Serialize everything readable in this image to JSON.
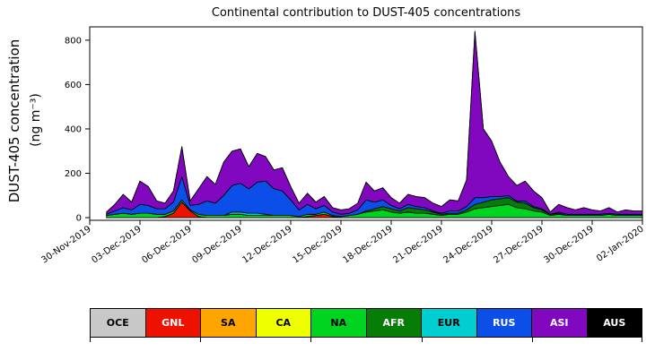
{
  "ylabel_line1": "DUST-405 concentration",
  "ylabel_line2": "(ng m⁻³)",
  "chart_data": {
    "type": "area",
    "stacked": true,
    "title": "Continental contribution to DUST-405 concentrations",
    "xlabel": "",
    "ylabel": "DUST-405 concentration (ng m⁻³)",
    "xlim": [
      0,
      33
    ],
    "ylim": [
      -12,
      860
    ],
    "grid": false,
    "legend_position": "bottom",
    "x_unit": "days since 30-Nov-2019",
    "x_tick_positions": [
      0,
      3,
      6,
      9,
      12,
      15,
      18,
      21,
      24,
      27,
      30,
      33
    ],
    "x_tick_labels": [
      "30-Nov-2019",
      "03-Dec-2019",
      "06-Dec-2019",
      "09-Dec-2019",
      "12-Dec-2019",
      "15-Dec-2019",
      "18-Dec-2019",
      "21-Dec-2019",
      "24-Dec-2019",
      "27-Dec-2019",
      "30-Dec-2019",
      "02-Jan-2020"
    ],
    "y_ticks": [
      0,
      200,
      400,
      600,
      800
    ],
    "x": [
      1,
      1.5,
      2,
      2.5,
      3,
      3.5,
      4,
      4.5,
      5,
      5.5,
      6,
      6.5,
      7,
      7.5,
      8,
      8.5,
      9,
      9.5,
      10,
      10.5,
      11,
      11.5,
      12,
      12.5,
      13,
      13.5,
      14,
      14.5,
      15,
      15.5,
      16,
      16.5,
      17,
      17.5,
      18,
      18.5,
      19,
      19.5,
      20,
      20.5,
      21,
      21.5,
      22,
      22.5,
      23,
      23.5,
      24,
      24.5,
      25,
      25.5,
      26,
      26.5,
      27,
      27.5,
      28,
      28.5,
      29,
      29.5,
      30,
      30.5,
      31,
      31.5,
      32,
      32.5,
      33
    ],
    "series": [
      {
        "name": "OCE",
        "color": "#c8c8c8",
        "values": [
          0,
          0,
          0,
          0,
          0,
          0,
          0,
          0,
          0,
          0,
          0,
          0,
          0,
          0,
          0,
          0,
          0,
          0,
          0,
          0,
          0,
          0,
          0,
          0,
          0,
          0,
          0,
          0,
          0,
          0,
          0,
          0,
          0,
          0,
          0,
          0,
          0,
          0,
          0,
          0,
          0,
          0,
          0,
          0,
          0,
          0,
          0,
          0,
          0,
          0,
          0,
          0,
          0,
          0,
          0,
          0,
          0,
          0,
          0,
          0,
          0,
          0,
          0,
          0,
          0
        ]
      },
      {
        "name": "GNL",
        "color": "#ee1100",
        "values": [
          0,
          0,
          0,
          0,
          0,
          0,
          0,
          5,
          20,
          70,
          30,
          5,
          0,
          0,
          0,
          0,
          0,
          0,
          0,
          0,
          0,
          0,
          0,
          0,
          5,
          10,
          15,
          5,
          0,
          0,
          0,
          0,
          0,
          0,
          0,
          0,
          0,
          0,
          0,
          0,
          0,
          0,
          0,
          0,
          0,
          0,
          0,
          0,
          0,
          0,
          0,
          0,
          0,
          0,
          0,
          0,
          0,
          0,
          0,
          0,
          0,
          0,
          0,
          0,
          0
        ]
      },
      {
        "name": "SA",
        "color": "#ffa500",
        "values": [
          0,
          0,
          0,
          0,
          0,
          0,
          0,
          0,
          0,
          0,
          0,
          0,
          0,
          0,
          0,
          0,
          0,
          0,
          0,
          0,
          0,
          0,
          0,
          0,
          0,
          0,
          0,
          0,
          0,
          0,
          0,
          0,
          0,
          0,
          0,
          0,
          0,
          0,
          0,
          0,
          0,
          0,
          0,
          0,
          0,
          0,
          0,
          0,
          0,
          0,
          0,
          0,
          0,
          0,
          0,
          0,
          0,
          0,
          0,
          0,
          0,
          0,
          0,
          0,
          0
        ]
      },
      {
        "name": "CA",
        "color": "#eeff00",
        "values": [
          0,
          0,
          0,
          0,
          0,
          0,
          0,
          0,
          0,
          0,
          0,
          0,
          0,
          0,
          0,
          0,
          0,
          0,
          0,
          0,
          0,
          0,
          0,
          0,
          0,
          0,
          0,
          0,
          0,
          0,
          0,
          0,
          0,
          0,
          0,
          0,
          0,
          0,
          0,
          0,
          0,
          0,
          0,
          0,
          0,
          0,
          0,
          0,
          0,
          0,
          0,
          0,
          0,
          0,
          0,
          0,
          0,
          0,
          0,
          0,
          0,
          0,
          0,
          0,
          0
        ]
      },
      {
        "name": "NA",
        "color": "#00d420",
        "values": [
          10,
          15,
          20,
          15,
          20,
          20,
          15,
          10,
          10,
          10,
          5,
          10,
          10,
          10,
          10,
          15,
          15,
          10,
          10,
          10,
          10,
          10,
          10,
          5,
          10,
          5,
          10,
          5,
          5,
          10,
          15,
          25,
          30,
          35,
          25,
          20,
          25,
          20,
          20,
          15,
          10,
          15,
          15,
          25,
          40,
          45,
          50,
          55,
          60,
          45,
          40,
          30,
          25,
          10,
          15,
          10,
          10,
          10,
          10,
          10,
          15,
          10,
          10,
          10,
          10
        ]
      },
      {
        "name": "AFR",
        "color": "#067d06",
        "values": [
          0,
          0,
          0,
          0,
          0,
          0,
          0,
          0,
          0,
          0,
          0,
          0,
          0,
          0,
          0,
          0,
          0,
          0,
          0,
          0,
          0,
          0,
          0,
          0,
          0,
          0,
          0,
          0,
          0,
          0,
          0,
          5,
          10,
          15,
          15,
          10,
          20,
          20,
          15,
          10,
          5,
          5,
          5,
          10,
          20,
          25,
          30,
          30,
          30,
          25,
          25,
          15,
          10,
          5,
          5,
          0,
          0,
          0,
          0,
          0,
          0,
          0,
          0,
          0,
          0
        ]
      },
      {
        "name": "EUR",
        "color": "#00ced1",
        "values": [
          0,
          0,
          0,
          0,
          0,
          0,
          0,
          0,
          0,
          0,
          0,
          0,
          0,
          0,
          0,
          10,
          10,
          10,
          10,
          5,
          0,
          0,
          0,
          0,
          0,
          0,
          0,
          0,
          0,
          0,
          0,
          0,
          0,
          0,
          0,
          0,
          0,
          0,
          0,
          0,
          0,
          0,
          0,
          0,
          0,
          0,
          0,
          0,
          0,
          0,
          0,
          0,
          0,
          0,
          0,
          0,
          0,
          0,
          0,
          0,
          0,
          0,
          0,
          0,
          0
        ]
      },
      {
        "name": "RUS",
        "color": "#0b4fe8",
        "values": [
          5,
          15,
          25,
          20,
          40,
          35,
          25,
          25,
          40,
          105,
          20,
          45,
          65,
          55,
          90,
          120,
          130,
          110,
          140,
          150,
          120,
          110,
          70,
          30,
          45,
          25,
          30,
          15,
          10,
          10,
          20,
          50,
          30,
          30,
          15,
          10,
          15,
          10,
          10,
          5,
          5,
          10,
          10,
          15,
          30,
          20,
          15,
          10,
          10,
          5,
          10,
          5,
          5,
          0,
          5,
          5,
          5,
          5,
          5,
          5,
          5,
          5,
          5,
          5,
          5
        ]
      },
      {
        "name": "ASI",
        "color": "#8208c0",
        "values": [
          10,
          30,
          60,
          35,
          105,
          85,
          35,
          25,
          50,
          135,
          20,
          70,
          110,
          85,
          150,
          155,
          155,
          100,
          130,
          110,
          85,
          105,
          60,
          30,
          50,
          30,
          40,
          20,
          20,
          20,
          30,
          80,
          50,
          55,
          35,
          25,
          45,
          45,
          45,
          35,
          30,
          50,
          45,
          120,
          750,
          310,
          250,
          155,
          85,
          70,
          90,
          70,
          50,
          10,
          35,
          30,
          20,
          30,
          20,
          15,
          25,
          10,
          20,
          15,
          15
        ]
      },
      {
        "name": "AUS",
        "color": "#000000",
        "values": [
          0,
          0,
          0,
          0,
          0,
          0,
          0,
          0,
          0,
          0,
          0,
          0,
          0,
          0,
          0,
          0,
          0,
          0,
          0,
          0,
          0,
          0,
          0,
          0,
          0,
          0,
          0,
          0,
          0,
          0,
          0,
          0,
          0,
          0,
          0,
          0,
          0,
          0,
          0,
          0,
          0,
          0,
          0,
          0,
          0,
          0,
          0,
          0,
          0,
          0,
          0,
          0,
          0,
          0,
          0,
          0,
          0,
          0,
          0,
          0,
          0,
          0,
          0,
          0,
          0
        ]
      }
    ]
  },
  "legend": {
    "items": [
      {
        "label": "OCE",
        "color": "#c8c8c8",
        "text_color": "#000000"
      },
      {
        "label": "GNL",
        "color": "#ee1100",
        "text_color": "#ffffff"
      },
      {
        "label": "SA",
        "color": "#ffa500",
        "text_color": "#000000"
      },
      {
        "label": "CA",
        "color": "#eeff00",
        "text_color": "#000000"
      },
      {
        "label": "NA",
        "color": "#00d420",
        "text_color": "#000000"
      },
      {
        "label": "AFR",
        "color": "#067d06",
        "text_color": "#ffffff"
      },
      {
        "label": "EUR",
        "color": "#00ced1",
        "text_color": "#000000"
      },
      {
        "label": "RUS",
        "color": "#0b4fe8",
        "text_color": "#ffffff"
      },
      {
        "label": "ASI",
        "color": "#8208c0",
        "text_color": "#ffffff"
      },
      {
        "label": "AUS",
        "color": "#000000",
        "text_color": "#ffffff"
      }
    ]
  }
}
